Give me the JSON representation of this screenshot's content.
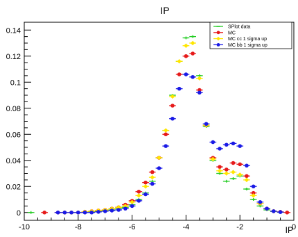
{
  "chart_data": {
    "type": "scatter",
    "title": "IP",
    "xlabel": "IP",
    "ylabel": "",
    "xlim": [
      -10,
      0
    ],
    "ylim": [
      -0.006,
      0.146
    ],
    "x_ticks": [
      "-10",
      "-8",
      "-6",
      "-4",
      "-2",
      "0"
    ],
    "y_ticks": [
      "0",
      "0.02",
      "0.04",
      "0.06",
      "0.08",
      "0.1",
      "0.12",
      "0.14"
    ],
    "legend_position": "top-right",
    "grid": false,
    "series": [
      {
        "name": "SPlot data",
        "color": "#22cc22",
        "marker": "cross",
        "x": [
          -9.75,
          -8.5,
          -8.25,
          -8.0,
          -7.75,
          -7.5,
          -7.25,
          -7.0,
          -6.75,
          -6.5,
          -6.25,
          -6.0,
          -5.75,
          -5.5,
          -5.25,
          -5.0,
          -4.75,
          -4.5,
          -4.25,
          -4.0,
          -3.75,
          -3.5,
          -3.25,
          -3.0,
          -2.75,
          -2.5,
          -2.25,
          -2.0,
          -1.75,
          -1.5,
          -1.25,
          -1.0,
          -0.75,
          -0.5
        ],
        "y": [
          0.0,
          0.0,
          0.0,
          0.0,
          0.0,
          0.0005,
          0.001,
          0.0015,
          0.002,
          0.003,
          0.004,
          0.006,
          0.01,
          0.015,
          0.024,
          0.042,
          0.063,
          0.09,
          0.116,
          0.134,
          0.135,
          0.105,
          0.066,
          0.04,
          0.03,
          0.024,
          0.026,
          0.028,
          0.018,
          0.01,
          0.005,
          0.002,
          0.0008,
          0.0002
        ]
      },
      {
        "name": "MC",
        "color": "#e61a1a",
        "marker": "circle",
        "x": [
          -9.25,
          -8.75,
          -8.5,
          -8.25,
          -8.0,
          -7.75,
          -7.5,
          -7.25,
          -7.0,
          -6.75,
          -6.5,
          -6.25,
          -6.0,
          -5.75,
          -5.5,
          -5.25,
          -5.0,
          -4.75,
          -4.5,
          -4.25,
          -4.0,
          -3.75,
          -3.5,
          -3.25,
          -3.0,
          -2.75,
          -2.5,
          -2.25,
          -2.0,
          -1.75,
          -1.5,
          -1.25,
          -1.0,
          -0.75,
          -0.5,
          -0.25
        ],
        "y": [
          0.0,
          0.0,
          0.0,
          0.0,
          0.0,
          0.0005,
          0.001,
          0.0015,
          0.002,
          0.003,
          0.004,
          0.006,
          0.009,
          0.016,
          0.023,
          0.031,
          0.042,
          0.06,
          0.082,
          0.106,
          0.12,
          0.122,
          0.094,
          0.067,
          0.042,
          0.035,
          0.033,
          0.038,
          0.037,
          0.028,
          0.015,
          0.007,
          0.003,
          0.001,
          0.0005,
          0.0
        ]
      },
      {
        "name": "MC cc 1 sigma up",
        "color": "#ffe600",
        "marker": "diamond",
        "x": [
          -8.5,
          -8.25,
          -8.0,
          -7.75,
          -7.5,
          -7.25,
          -7.0,
          -6.75,
          -6.5,
          -6.25,
          -6.0,
          -5.75,
          -5.5,
          -5.25,
          -5.0,
          -4.75,
          -4.5,
          -4.25,
          -4.0,
          -3.75,
          -3.5,
          -3.25,
          -3.0,
          -2.75,
          -2.5,
          -2.25,
          -2.0,
          -1.75,
          -1.5,
          -1.25,
          -1.0,
          -0.75
        ],
        "y": [
          0.0,
          0.0,
          0.0,
          0.0005,
          0.001,
          0.0015,
          0.002,
          0.003,
          0.004,
          0.005,
          0.008,
          0.013,
          0.02,
          0.027,
          0.042,
          0.063,
          0.089,
          0.116,
          0.128,
          0.13,
          0.103,
          0.067,
          0.041,
          0.032,
          0.03,
          0.031,
          0.029,
          0.025,
          0.013,
          0.007,
          0.003,
          0.001
        ]
      },
      {
        "name": "MC bb 1 sigma up",
        "color": "#1a1ae6",
        "marker": "circle",
        "x": [
          -8.75,
          -8.5,
          -8.25,
          -8.0,
          -7.75,
          -7.5,
          -7.25,
          -7.0,
          -6.75,
          -6.5,
          -6.25,
          -6.0,
          -5.75,
          -5.5,
          -5.25,
          -5.0,
          -4.75,
          -4.5,
          -4.25,
          -4.0,
          -3.75,
          -3.5,
          -3.25,
          -3.0,
          -2.75,
          -2.5,
          -2.25,
          -2.0,
          -1.75,
          -1.5,
          -1.25,
          -1.0,
          -0.75,
          -0.5
        ],
        "y": [
          0.0,
          0.0,
          0.0,
          0.0,
          0.0,
          0.0,
          0.0005,
          0.001,
          0.0015,
          0.002,
          0.003,
          0.005,
          0.009,
          0.014,
          0.022,
          0.034,
          0.051,
          0.072,
          0.095,
          0.106,
          0.104,
          0.092,
          0.068,
          0.054,
          0.049,
          0.052,
          0.053,
          0.051,
          0.036,
          0.02,
          0.008,
          0.003,
          0.001,
          0.0003
        ]
      }
    ]
  }
}
